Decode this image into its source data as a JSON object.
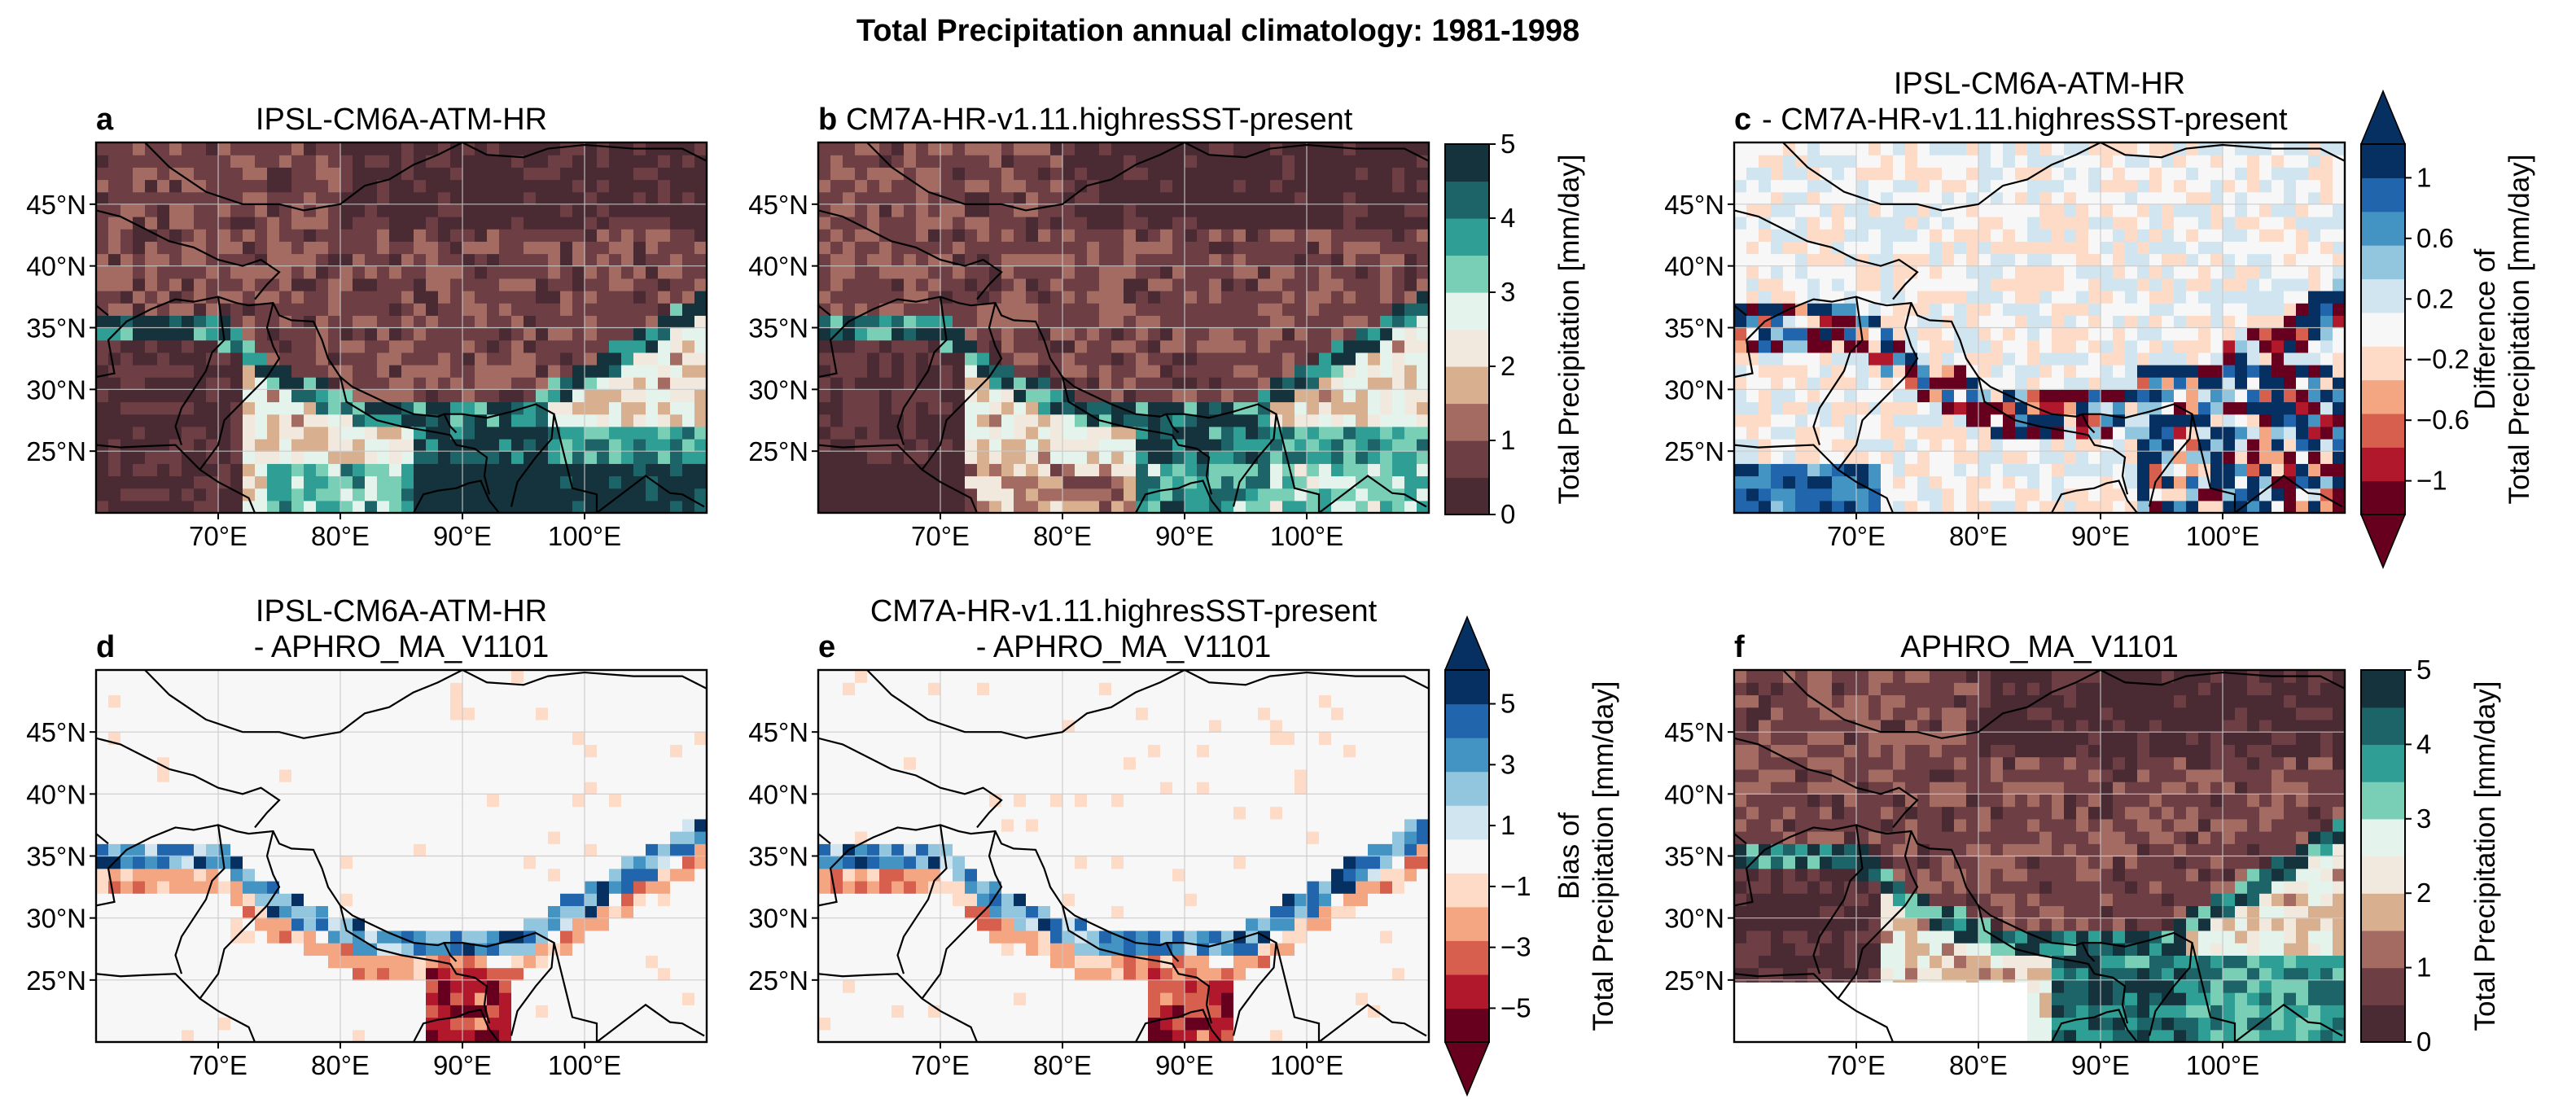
{
  "figure_title": "Total Precipitation annual climatology: 1981-1998",
  "colors": {
    "precip": [
      "#4a2b33",
      "#6d3f44",
      "#a36b62",
      "#d9b08f",
      "#f1e9dd",
      "#e4f4ec",
      "#79cfb6",
      "#2f9e94",
      "#1c6467",
      "#15333c"
    ],
    "diff": [
      "#67001f",
      "#b2182b",
      "#d6604d",
      "#f4a582",
      "#fddbc7",
      "#f7f7f7",
      "#d1e5f0",
      "#92c5de",
      "#4393c3",
      "#2166ac",
      "#053061"
    ],
    "coast": "#000000",
    "grid": "#c9c9c9"
  },
  "chart_data": [
    {
      "type": "heatmap",
      "panel": "a",
      "title_lines": [
        "IPSL-CM6A-ATM-HR"
      ],
      "field": "model_ipsl",
      "xlim": [
        60,
        110
      ],
      "ylim": [
        20,
        50
      ],
      "xticks": [
        "70°E",
        "80°E",
        "90°E",
        "100°E"
      ],
      "yticks": [
        "25°N",
        "30°N",
        "35°N",
        "40°N",
        "45°N"
      ],
      "colormap": "precip",
      "value_range": [
        0,
        5
      ]
    },
    {
      "type": "heatmap",
      "panel": "b",
      "title_lines": [
        "CM7A-HR-v1.11.highresSST-present"
      ],
      "field": "model_cm7",
      "xlim": [
        60,
        110
      ],
      "ylim": [
        20,
        50
      ],
      "xticks": [
        "70°E",
        "80°E",
        "90°E",
        "100°E"
      ],
      "yticks": [
        "25°N",
        "30°N",
        "35°N",
        "40°N",
        "45°N"
      ],
      "colormap": "precip",
      "value_range": [
        0,
        5
      ],
      "colorbar": {
        "label": "Total Precipitation [mm/day]",
        "ticks": [
          "0",
          "1",
          "2",
          "3",
          "4",
          "5"
        ]
      }
    },
    {
      "type": "heatmap",
      "panel": "c",
      "title_lines": [
        "IPSL-CM6A-ATM-HR",
        "- CM7A-HR-v1.11.highresSST-present"
      ],
      "field": "difference",
      "xlim": [
        60,
        110
      ],
      "ylim": [
        20,
        50
      ],
      "xticks": [
        "70°E",
        "80°E",
        "90°E",
        "100°E"
      ],
      "yticks": [
        "25°N",
        "30°N",
        "35°N",
        "40°N",
        "45°N"
      ],
      "colormap": "diff",
      "value_range": [
        -1,
        1
      ],
      "colorbar": {
        "label_lines": [
          "Difference of",
          "Total Precipitation [mm/day]"
        ],
        "ticks": [
          "1",
          "0.6",
          "0.2",
          "−0.2",
          "−0.6",
          "−1"
        ],
        "extend": "both"
      }
    },
    {
      "type": "heatmap",
      "panel": "d",
      "title_lines": [
        "IPSL-CM6A-ATM-HR",
        "- APHRO_MA_V1101"
      ],
      "field": "bias_ipsl",
      "xlim": [
        60,
        110
      ],
      "ylim": [
        20,
        50
      ],
      "xticks": [
        "70°E",
        "80°E",
        "90°E",
        "100°E"
      ],
      "yticks": [
        "25°N",
        "30°N",
        "35°N",
        "40°N",
        "45°N"
      ],
      "colormap": "diff",
      "value_range": [
        -5,
        5
      ]
    },
    {
      "type": "heatmap",
      "panel": "e",
      "title_lines": [
        "CM7A-HR-v1.11.highresSST-present",
        "- APHRO_MA_V1101"
      ],
      "field": "bias_cm7",
      "xlim": [
        60,
        110
      ],
      "ylim": [
        20,
        50
      ],
      "xticks": [
        "70°E",
        "80°E",
        "90°E",
        "100°E"
      ],
      "yticks": [
        "25°N",
        "30°N",
        "35°N",
        "40°N",
        "45°N"
      ],
      "colormap": "diff",
      "value_range": [
        -5,
        5
      ],
      "colorbar": {
        "label_lines": [
          "Bias of",
          "Total Precipitation [mm/day]"
        ],
        "ticks": [
          "5",
          "3",
          "1",
          "−1",
          "−3",
          "−5"
        ],
        "extend": "both"
      }
    },
    {
      "type": "heatmap",
      "panel": "f",
      "title_lines": [
        "APHRO_MA_V1101"
      ],
      "field": "obs",
      "xlim": [
        60,
        110
      ],
      "ylim": [
        20,
        50
      ],
      "xticks": [
        "70°E",
        "80°E",
        "90°E",
        "100°E"
      ],
      "yticks": [
        "25°N",
        "30°N",
        "35°N",
        "40°N",
        "45°N"
      ],
      "colormap": "precip",
      "value_range": [
        0,
        5
      ],
      "colorbar": {
        "label": "Total Precipitation [mm/day]",
        "ticks": [
          "0",
          "1",
          "2",
          "3",
          "4",
          "5"
        ]
      }
    }
  ]
}
